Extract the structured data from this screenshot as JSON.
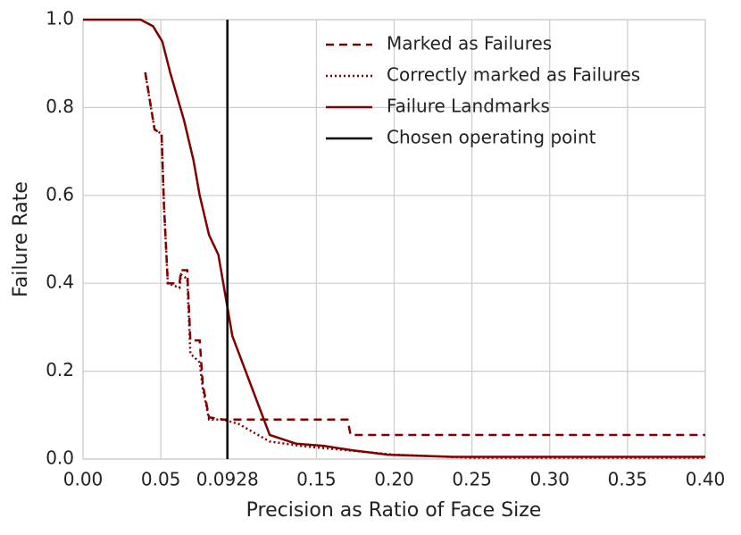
{
  "chart_data": {
    "type": "line",
    "xlabel": "Precision as Ratio of Face Size",
    "ylabel": "Failure Rate",
    "xlim": [
      0,
      0.4
    ],
    "ylim": [
      0,
      1.0
    ],
    "xticks": [
      {
        "value": 0,
        "label": "0.00"
      },
      0.05,
      0.0928,
      0.15,
      {
        "value": 0.2,
        "label": "0.20"
      },
      0.25,
      {
        "value": 0.3,
        "label": "0.30"
      },
      0.35,
      {
        "value": 0.4,
        "label": "0.40"
      }
    ],
    "yticks": [
      {
        "value": 0,
        "label": "0.0"
      },
      0.2,
      0.4,
      0.6,
      0.8,
      {
        "value": 1.0,
        "label": "1.0"
      }
    ],
    "grid": true,
    "legend": "upper right",
    "series": [
      {
        "name": "Marked as Failures",
        "color": "#800000",
        "dash": "dashed",
        "x": [
          0.04,
          0.046,
          0.0505,
          0.052,
          0.0545,
          0.062,
          0.063,
          0.067,
          0.069,
          0.075,
          0.077,
          0.081,
          0.09,
          0.17,
          0.172,
          0.4
        ],
        "values": [
          0.88,
          0.75,
          0.74,
          0.58,
          0.4,
          0.4,
          0.43,
          0.43,
          0.27,
          0.27,
          0.17,
          0.095,
          0.09,
          0.09,
          0.055,
          0.055
        ]
      },
      {
        "name": "Correctly marked as Failures",
        "color": "#800000",
        "dash": "dotted",
        "x": [
          0.04,
          0.046,
          0.0505,
          0.052,
          0.0545,
          0.062,
          0.063,
          0.067,
          0.069,
          0.075,
          0.077,
          0.081,
          0.09,
          0.1,
          0.11,
          0.12,
          0.14,
          0.17,
          0.2,
          0.25,
          0.4
        ],
        "values": [
          0.88,
          0.75,
          0.74,
          0.58,
          0.4,
          0.39,
          0.42,
          0.41,
          0.24,
          0.22,
          0.16,
          0.09,
          0.09,
          0.08,
          0.06,
          0.04,
          0.03,
          0.02,
          0.01,
          0.003,
          0.003
        ]
      },
      {
        "name": "Failure Landmarks",
        "color": "#800000",
        "dash": "solid",
        "x": [
          0,
          0.037,
          0.045,
          0.051,
          0.056,
          0.065,
          0.071,
          0.075,
          0.081,
          0.087,
          0.096,
          0.12,
          0.137,
          0.155,
          0.173,
          0.196,
          0.237,
          0.4
        ],
        "values": [
          1.0,
          1.0,
          0.985,
          0.95,
          0.88,
          0.77,
          0.68,
          0.6,
          0.51,
          0.465,
          0.28,
          0.055,
          0.035,
          0.03,
          0.02,
          0.01,
          0.005,
          0.005
        ]
      }
    ],
    "reference_line": {
      "name": "Chosen operating point",
      "x": 0.0928,
      "color": "#000000"
    }
  }
}
